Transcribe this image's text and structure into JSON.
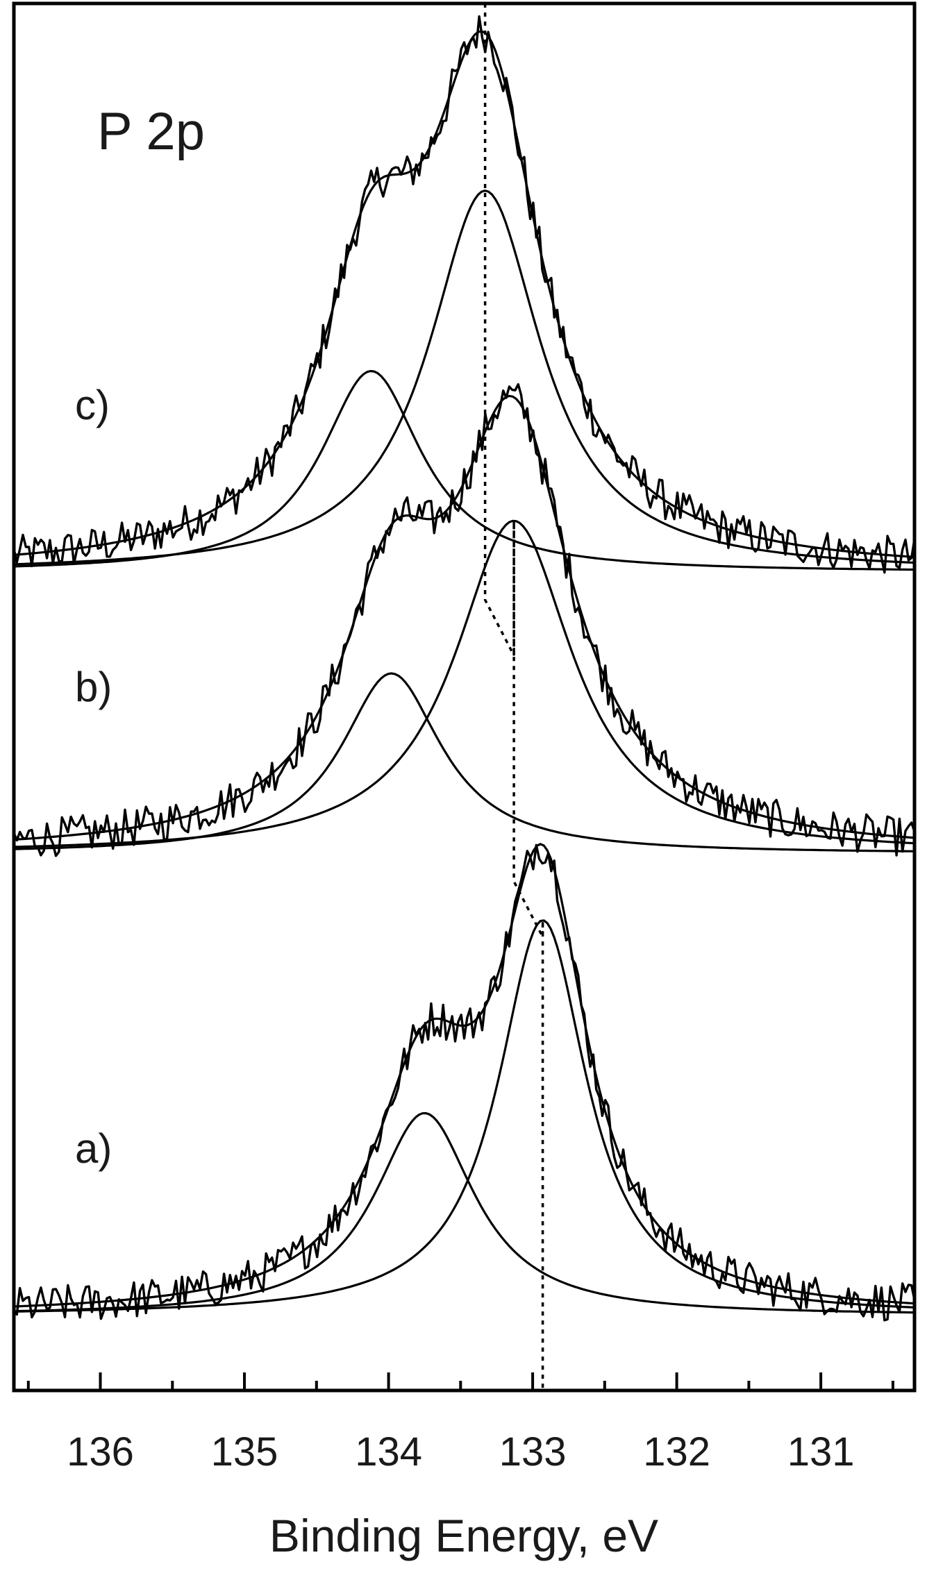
{
  "chart_data": {
    "type": "line",
    "title": "",
    "region_label": "P 2p",
    "xlabel": "Binding Energy, eV",
    "ylabel": "",
    "x_reversed": true,
    "xlim": [
      136.6,
      130.35
    ],
    "x_ticks": [
      136,
      135,
      134,
      133,
      132,
      131
    ],
    "x_tick_labels": [
      "136",
      "135",
      "134",
      "133",
      "132",
      "131"
    ],
    "ylim": [
      0,
      1
    ],
    "grid": false,
    "legend": "none",
    "panels": [
      {
        "label": "c)",
        "baseline": 0.59,
        "raw_peak_energy": 133.65,
        "components": [
          {
            "center_eV": 133.33,
            "height": 0.275,
            "width_eV": 0.95
          },
          {
            "center_eV": 134.12,
            "height": 0.145,
            "width_eV": 0.85
          }
        ],
        "envelope_height": 0.39,
        "guide_energy": 133.33
      },
      {
        "label": "b)",
        "baseline": 0.387,
        "raw_peak_energy": 133.3,
        "components": [
          {
            "center_eV": 133.13,
            "height": 0.24,
            "width_eV": 1.0
          },
          {
            "center_eV": 133.98,
            "height": 0.13,
            "width_eV": 0.85
          }
        ],
        "envelope_height": 0.33,
        "guide_energy": 133.13
      },
      {
        "label": "a)",
        "baseline": 0.054,
        "raw_peak_energy": 133.15,
        "components": [
          {
            "center_eV": 132.93,
            "height": 0.285,
            "width_eV": 0.75
          },
          {
            "center_eV": 133.75,
            "height": 0.146,
            "width_eV": 0.85
          }
        ],
        "envelope_height": 0.34,
        "guide_energy": 132.93
      }
    ],
    "colors": {
      "line": "#000000",
      "text": "#1a1a1a",
      "background": "#ffffff"
    }
  }
}
